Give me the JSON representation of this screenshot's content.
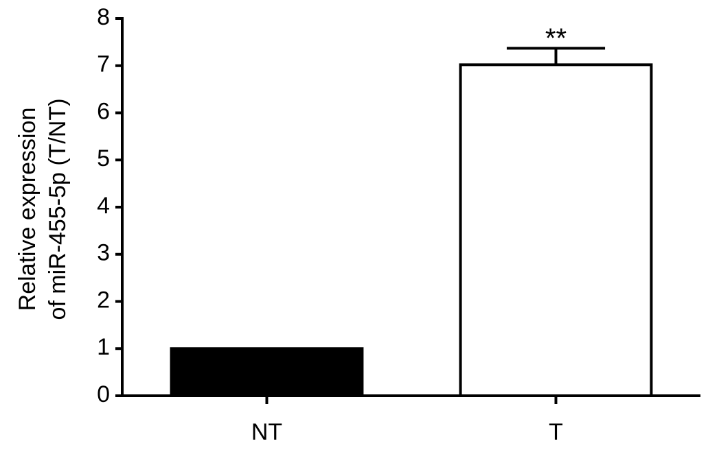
{
  "chart_data": {
    "type": "bar",
    "ylabel": [
      "Relative expression",
      "of miR-455-5p (T/NT)"
    ],
    "categories": [
      "NT",
      "T"
    ],
    "values": [
      1,
      7.02
    ],
    "errors": [
      null,
      0.35
    ],
    "significance": [
      null,
      "**"
    ],
    "colors": [
      "#000000",
      "#ffffff"
    ],
    "ylim": [
      0,
      8
    ],
    "yticks": [
      0,
      1,
      2,
      3,
      4,
      5,
      6,
      7,
      8
    ],
    "grid": false
  }
}
